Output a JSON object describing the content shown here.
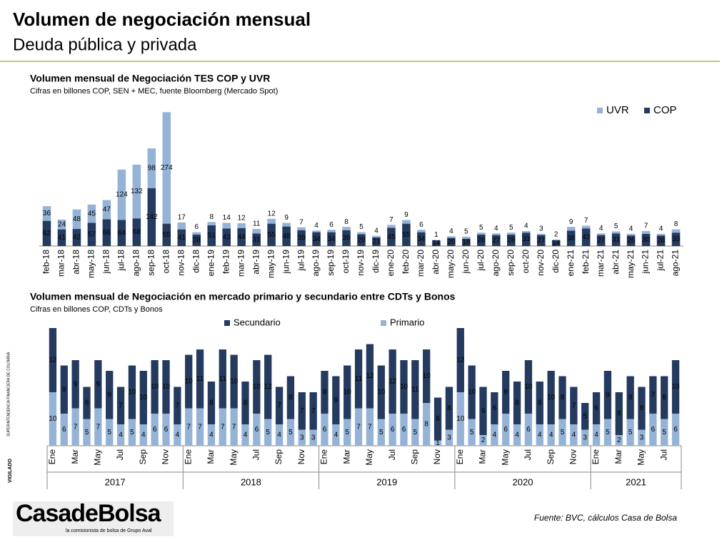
{
  "header": {
    "title": "Volumen de negociación mensual",
    "subtitle": "Deuda pública y privada"
  },
  "chart_data": [
    {
      "type": "bar",
      "stacked": true,
      "title": "Volumen mensual de Negociación TES COP y UVR",
      "subtitle": "Cifras en billones COP, SEN + MEC, fuente Bloomberg (Mercado Spot)",
      "categories": [
        "feb-18",
        "mar-18",
        "abr-18",
        "may-18",
        "jun-18",
        "jul-18",
        "ago-18",
        "sep-18",
        "oct-18",
        "nov-18",
        "dic-18",
        "ene-19",
        "feb-19",
        "mar-19",
        "abr-19",
        "may-19",
        "jun-19",
        "jul-19",
        "ago-19",
        "sep-19",
        "oct-19",
        "nov-19",
        "dic-19",
        "ene-20",
        "feb-20",
        "mar-20",
        "abr-20",
        "may-20",
        "jun-20",
        "jul-20",
        "ago-20",
        "sep-20",
        "oct-20",
        "nov-20",
        "dic-20",
        "ene-21",
        "feb-21",
        "mar-21",
        "abr-21",
        "may-21",
        "jun-21",
        "jul-21",
        "ago-21"
      ],
      "series": [
        {
          "name": "COP",
          "color": "#243a5e",
          "values": [
            62,
            41,
            42,
            57,
            66,
            64,
            68,
            142,
            55,
            41,
            28,
            51,
            43,
            44,
            31,
            55,
            48,
            39,
            34,
            34,
            39,
            29,
            21,
            45,
            55,
            34,
            14,
            20,
            18,
            28,
            27,
            28,
            33,
            27,
            14,
            38,
            43,
            27,
            31,
            26,
            30,
            26,
            33
          ]
        },
        {
          "name": "UVR",
          "color": "#95b3d7",
          "values": [
            36,
            24,
            48,
            45,
            47,
            124,
            132,
            98,
            274,
            17,
            6,
            8,
            14,
            12,
            11,
            12,
            9,
            7,
            4,
            6,
            8,
            5,
            4,
            7,
            9,
            6,
            1,
            4,
            5,
            5,
            4,
            5,
            4,
            3,
            2,
            9,
            7,
            4,
            5,
            4,
            7,
            4,
            8
          ]
        }
      ],
      "ylim": [
        0,
        340
      ],
      "legend": "top-right"
    },
    {
      "type": "bar",
      "stacked": true,
      "title": "Volumen mensual de Negociación en mercado primario y secundario entre CDTs y Bonos",
      "subtitle": "Cifras en billones COP, CDTs y Bonos",
      "categories": [
        "Ene",
        null,
        "Mar",
        null,
        "May",
        null,
        "Jul",
        null,
        "Sep",
        null,
        "Nov",
        null,
        "Ene",
        null,
        "Mar",
        null,
        "May",
        null,
        "Jul",
        null,
        "Sep",
        null,
        "Nov",
        null,
        "Ene",
        null,
        "Mar",
        null,
        "May",
        null,
        "Jul",
        null,
        "Sep",
        null,
        "Nov",
        null,
        "Ene",
        null,
        "Mar",
        null,
        "May",
        null,
        "Jul",
        null,
        "Sep",
        null,
        "Nov",
        null,
        "Ene",
        null,
        "Mar",
        null,
        "May",
        null,
        "Jul",
        null
      ],
      "groups": [
        "2017",
        "2018",
        "2019",
        "2020",
        "2021"
      ],
      "series": [
        {
          "name": "Primario",
          "color": "#95b3d7",
          "values": [
            10,
            6,
            7,
            5,
            7,
            5,
            4,
            5,
            4,
            6,
            6,
            4,
            7,
            7,
            4,
            7,
            7,
            4,
            6,
            5,
            4,
            5,
            3,
            3,
            6,
            4,
            5,
            7,
            7,
            5,
            6,
            6,
            5,
            8,
            1,
            3,
            10,
            5,
            2,
            4,
            6,
            4,
            6,
            4,
            4,
            5,
            4,
            3,
            4,
            5,
            2,
            5,
            3,
            6,
            5,
            6
          ]
        },
        {
          "name": "Secundario",
          "color": "#243a5e",
          "values": [
            12,
            9,
            9,
            6,
            9,
            9,
            7,
            10,
            10,
            10,
            10,
            7,
            10,
            11,
            8,
            11,
            10,
            8,
            10,
            12,
            7,
            8,
            7,
            7,
            8,
            9,
            10,
            11,
            12,
            10,
            12,
            10,
            11,
            10,
            8,
            8,
            12,
            10,
            9,
            6,
            8,
            8,
            10,
            8,
            10,
            8,
            7,
            5,
            6,
            9,
            8,
            8,
            8,
            7,
            8,
            10
          ]
        }
      ],
      "ylim": [
        0,
        23
      ],
      "legend": "top-center"
    }
  ],
  "footer": {
    "source": "Fuente: BVC, cálculos Casa de Bolsa",
    "logo": "CasadeBolsa",
    "tagline": "la comisionista de bolsa de Grupo Aval",
    "side_1": "VIGILADO",
    "side_2": "SUPERINTENDENCIA FINANCIERA DE COLOMBIA"
  }
}
